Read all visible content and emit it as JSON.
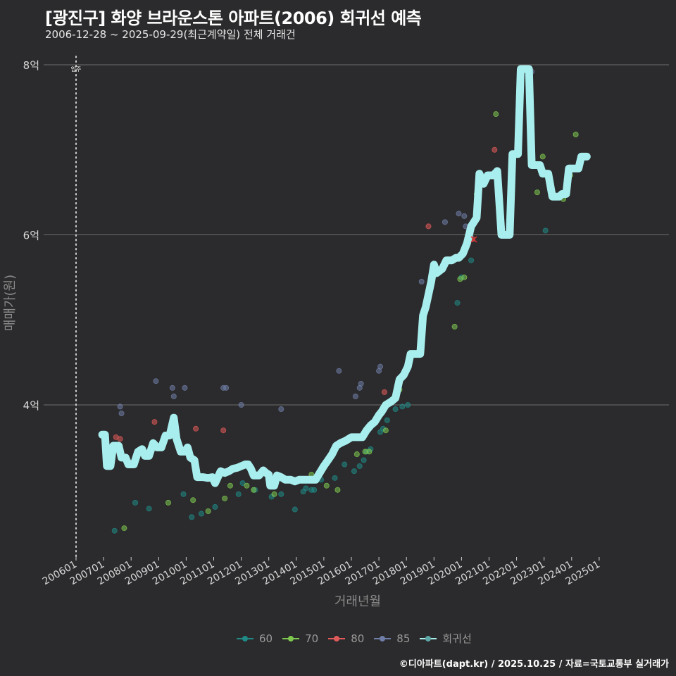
{
  "header": {
    "title": "[광진구] 화양 브라운스톤 아파트(2006) 회귀선 예측",
    "subtitle": "2006-12-28 ~ 2025-09-29(최근계약일) 전체 거래건"
  },
  "footer": {
    "credit": "©디아파트(dapt.kr) / 2025.10.25 / 자료=국토교통부 실거래가"
  },
  "legend": {
    "items": [
      {
        "label": "60",
        "color": "#1f8a86"
      },
      {
        "label": "70",
        "color": "#7ec850"
      },
      {
        "label": "80",
        "color": "#e05a5a"
      },
      {
        "label": "85",
        "color": "#6f7ea8"
      },
      {
        "label": "회귀선",
        "color": "#a8eeee"
      }
    ]
  },
  "colors": {
    "background": "#2b2a2c",
    "grid": "#707070",
    "regression": "#a8eeee",
    "annotation_line": "#cfcfcf"
  },
  "chart_data": {
    "type": "line",
    "title": "[광진구] 화양 브라운스톤 아파트(2006) 회귀선 예측",
    "subtitle": "2006-12-28 ~ 2025-09-29(최근계약일) 전체 거래건",
    "xlabel": "거래년월",
    "ylabel": "매매가(원)",
    "x_ticks": [
      "200601",
      "200701",
      "200801",
      "200901",
      "201001",
      "201101",
      "201201",
      "201301",
      "201401",
      "201501",
      "201601",
      "201701",
      "201801",
      "201901",
      "202001",
      "202101",
      "202201",
      "202301",
      "202401",
      "202501"
    ],
    "y_ticks": [
      {
        "value": 4,
        "label": "4억"
      },
      {
        "value": 6,
        "label": "6억"
      },
      {
        "value": 8,
        "label": "8억"
      }
    ],
    "ylim": [
      2.2,
      8.2
    ],
    "grid": true,
    "legend_position": "bottom",
    "annotation": {
      "x": 2006.0,
      "label": "입주",
      "style": "dotted vertical line"
    },
    "regression_series": {
      "name": "회귀선",
      "points": [
        [
          2006.95,
          3.65
        ],
        [
          2007.05,
          3.65
        ],
        [
          2007.12,
          3.28
        ],
        [
          2007.25,
          3.28
        ],
        [
          2007.35,
          3.52
        ],
        [
          2007.55,
          3.52
        ],
        [
          2007.65,
          3.38
        ],
        [
          2007.8,
          3.38
        ],
        [
          2007.9,
          3.3
        ],
        [
          2008.1,
          3.3
        ],
        [
          2008.25,
          3.45
        ],
        [
          2008.4,
          3.48
        ],
        [
          2008.5,
          3.4
        ],
        [
          2008.65,
          3.4
        ],
        [
          2008.8,
          3.55
        ],
        [
          2008.95,
          3.5
        ],
        [
          2009.1,
          3.5
        ],
        [
          2009.25,
          3.64
        ],
        [
          2009.4,
          3.64
        ],
        [
          2009.55,
          3.85
        ],
        [
          2009.65,
          3.6
        ],
        [
          2009.8,
          3.45
        ],
        [
          2009.95,
          3.45
        ],
        [
          2010.05,
          3.5
        ],
        [
          2010.15,
          3.38
        ],
        [
          2010.3,
          3.35
        ],
        [
          2010.4,
          3.15
        ],
        [
          2010.6,
          3.15
        ],
        [
          2010.8,
          3.14
        ],
        [
          2010.95,
          3.15
        ],
        [
          2011.05,
          3.08
        ],
        [
          2011.25,
          3.22
        ],
        [
          2011.4,
          3.2
        ],
        [
          2011.55,
          3.22
        ],
        [
          2011.7,
          3.25
        ],
        [
          2011.85,
          3.26
        ],
        [
          2012.0,
          3.28
        ],
        [
          2012.15,
          3.3
        ],
        [
          2012.25,
          3.3
        ],
        [
          2012.35,
          3.25
        ],
        [
          2012.45,
          3.17
        ],
        [
          2012.65,
          3.17
        ],
        [
          2012.8,
          3.23
        ],
        [
          2012.9,
          3.2
        ],
        [
          2013.0,
          3.18
        ],
        [
          2013.05,
          3.05
        ],
        [
          2013.2,
          3.05
        ],
        [
          2013.3,
          3.17
        ],
        [
          2013.45,
          3.15
        ],
        [
          2013.6,
          3.12
        ],
        [
          2013.8,
          3.12
        ],
        [
          2013.95,
          3.1
        ],
        [
          2014.1,
          3.12
        ],
        [
          2014.3,
          3.12
        ],
        [
          2014.5,
          3.12
        ],
        [
          2014.7,
          3.12
        ],
        [
          2014.85,
          3.2
        ],
        [
          2015.0,
          3.28
        ],
        [
          2015.15,
          3.35
        ],
        [
          2015.3,
          3.42
        ],
        [
          2015.45,
          3.52
        ],
        [
          2015.6,
          3.55
        ],
        [
          2015.8,
          3.58
        ],
        [
          2016.0,
          3.62
        ],
        [
          2016.2,
          3.62
        ],
        [
          2016.4,
          3.62
        ],
        [
          2016.55,
          3.7
        ],
        [
          2016.7,
          3.76
        ],
        [
          2016.85,
          3.8
        ],
        [
          2017.0,
          3.88
        ],
        [
          2017.1,
          3.92
        ],
        [
          2017.25,
          4.0
        ],
        [
          2017.45,
          4.04
        ],
        [
          2017.6,
          4.08
        ],
        [
          2017.75,
          4.3
        ],
        [
          2017.9,
          4.35
        ],
        [
          2018.05,
          4.45
        ],
        [
          2018.15,
          4.6
        ],
        [
          2018.35,
          4.6
        ],
        [
          2018.5,
          4.6
        ],
        [
          2018.6,
          5.05
        ],
        [
          2018.7,
          5.15
        ],
        [
          2018.8,
          5.3
        ],
        [
          2018.9,
          5.45
        ],
        [
          2019.0,
          5.65
        ],
        [
          2019.1,
          5.55
        ],
        [
          2019.3,
          5.6
        ],
        [
          2019.45,
          5.7
        ],
        [
          2019.65,
          5.7
        ],
        [
          2019.8,
          5.73
        ],
        [
          2019.9,
          5.73
        ],
        [
          2020.05,
          5.78
        ],
        [
          2020.2,
          5.9
        ],
        [
          2020.35,
          6.1
        ],
        [
          2020.55,
          6.2
        ],
        [
          2020.65,
          6.72
        ],
        [
          2020.8,
          6.6
        ],
        [
          2020.95,
          6.7
        ],
        [
          2021.15,
          6.7
        ],
        [
          2021.3,
          6.75
        ],
        [
          2021.45,
          6.0
        ],
        [
          2021.75,
          6.0
        ],
        [
          2021.85,
          6.95
        ],
        [
          2022.05,
          6.95
        ],
        [
          2022.15,
          7.95
        ],
        [
          2022.45,
          7.95
        ],
        [
          2022.55,
          6.82
        ],
        [
          2022.85,
          6.82
        ],
        [
          2022.95,
          6.72
        ],
        [
          2023.15,
          6.72
        ],
        [
          2023.3,
          6.45
        ],
        [
          2023.55,
          6.45
        ],
        [
          2023.65,
          6.48
        ],
        [
          2023.8,
          6.48
        ],
        [
          2023.9,
          6.78
        ],
        [
          2024.1,
          6.78
        ],
        [
          2024.25,
          6.78
        ],
        [
          2024.35,
          6.92
        ],
        [
          2024.55,
          6.92
        ]
      ]
    },
    "scatter_series": [
      {
        "name": "60",
        "color": "#1f8a86",
        "points": [
          [
            2007.4,
            2.52
          ],
          [
            2008.15,
            2.85
          ],
          [
            2008.65,
            2.78
          ],
          [
            2009.9,
            2.95
          ],
          [
            2010.2,
            2.68
          ],
          [
            2010.55,
            2.72
          ],
          [
            2011.05,
            2.8
          ],
          [
            2011.9,
            2.95
          ],
          [
            2012.05,
            3.08
          ],
          [
            2012.5,
            3.0
          ],
          [
            2013.1,
            2.92
          ],
          [
            2013.45,
            2.95
          ],
          [
            2013.95,
            2.77
          ],
          [
            2014.25,
            2.98
          ],
          [
            2014.35,
            3.02
          ],
          [
            2014.55,
            3.0
          ],
          [
            2014.65,
            3.0
          ],
          [
            2014.9,
            3.12
          ],
          [
            2015.4,
            3.14
          ],
          [
            2015.75,
            3.3
          ],
          [
            2016.1,
            3.22
          ],
          [
            2016.3,
            3.28
          ],
          [
            2016.45,
            3.35
          ],
          [
            2016.55,
            3.45
          ],
          [
            2016.7,
            3.48
          ],
          [
            2017.05,
            3.68
          ],
          [
            2017.15,
            3.72
          ],
          [
            2017.3,
            3.82
          ],
          [
            2017.6,
            3.95
          ],
          [
            2017.85,
            3.98
          ],
          [
            2018.05,
            4.0
          ],
          [
            2019.85,
            5.2
          ],
          [
            2020.0,
            5.5
          ],
          [
            2020.35,
            5.7
          ],
          [
            2023.05,
            6.05
          ]
        ]
      },
      {
        "name": "70",
        "color": "#7ec850",
        "points": [
          [
            2007.75,
            2.55
          ],
          [
            2009.35,
            2.85
          ],
          [
            2010.25,
            2.88
          ],
          [
            2010.8,
            2.75
          ],
          [
            2011.4,
            2.9
          ],
          [
            2011.6,
            3.05
          ],
          [
            2012.2,
            3.05
          ],
          [
            2012.45,
            3.0
          ],
          [
            2013.2,
            2.95
          ],
          [
            2014.55,
            3.18
          ],
          [
            2015.1,
            3.05
          ],
          [
            2015.5,
            3.0
          ],
          [
            2016.2,
            3.42
          ],
          [
            2016.5,
            3.45
          ],
          [
            2016.65,
            3.45
          ],
          [
            2017.25,
            3.7
          ],
          [
            2017.75,
            4.18
          ],
          [
            2019.75,
            4.92
          ],
          [
            2019.95,
            5.48
          ],
          [
            2020.1,
            5.5
          ],
          [
            2020.3,
            6.05
          ],
          [
            2020.55,
            6.48
          ],
          [
            2021.25,
            7.42
          ],
          [
            2022.75,
            6.5
          ],
          [
            2022.95,
            6.92
          ],
          [
            2023.7,
            6.42
          ],
          [
            2023.95,
            6.7
          ],
          [
            2024.15,
            7.18
          ]
        ]
      },
      {
        "name": "80",
        "color": "#e05a5a",
        "points": [
          [
            2007.45,
            3.62
          ],
          [
            2007.6,
            3.6
          ],
          [
            2008.85,
            3.8
          ],
          [
            2010.35,
            3.72
          ],
          [
            2011.35,
            3.7
          ],
          [
            2017.2,
            4.15
          ],
          [
            2018.8,
            6.1
          ],
          [
            2020.4,
            5.95
          ],
          [
            2021.2,
            7.0
          ]
        ]
      },
      {
        "name": "85",
        "color": "#6f7ea8",
        "points": [
          [
            2007.6,
            3.98
          ],
          [
            2007.65,
            3.9
          ],
          [
            2008.9,
            4.28
          ],
          [
            2009.5,
            4.2
          ],
          [
            2009.55,
            4.1
          ],
          [
            2009.95,
            4.2
          ],
          [
            2011.35,
            4.2
          ],
          [
            2011.45,
            4.2
          ],
          [
            2012.0,
            4.0
          ],
          [
            2013.45,
            3.95
          ],
          [
            2015.55,
            4.4
          ],
          [
            2016.15,
            4.1
          ],
          [
            2016.3,
            4.2
          ],
          [
            2016.35,
            4.25
          ],
          [
            2017.0,
            4.4
          ],
          [
            2017.05,
            4.45
          ],
          [
            2018.55,
            5.45
          ],
          [
            2019.4,
            6.15
          ],
          [
            2019.9,
            6.25
          ],
          [
            2020.1,
            6.22
          ],
          [
            2020.15,
            6.1
          ],
          [
            2022.55,
            7.92
          ]
        ]
      }
    ]
  }
}
